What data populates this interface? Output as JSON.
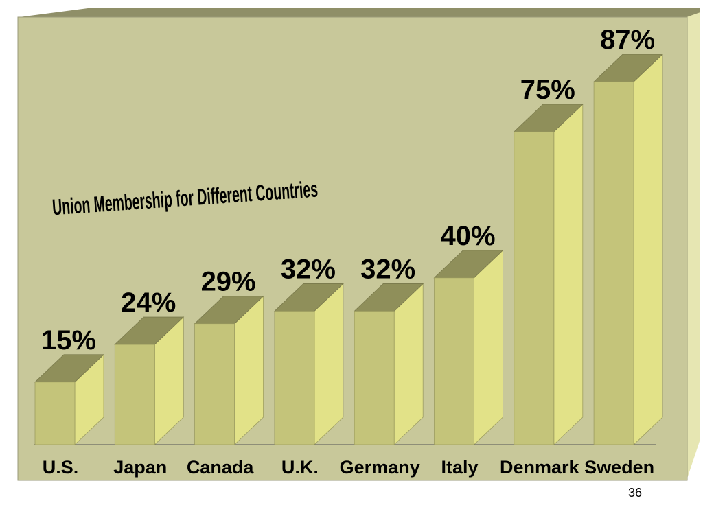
{
  "slide": {
    "page_number": "36"
  },
  "colors": {
    "panel_front": "#c8c89a",
    "panel_top": "#8f8f68",
    "panel_side": "#e6e6b2",
    "bar_front": "#c4c47a",
    "bar_top": "#8f8f5a",
    "bar_side": "#e2e288"
  },
  "chart_data": {
    "type": "bar",
    "title": "Union Membership for Different Countries",
    "categories": [
      "U.S.",
      "Japan",
      "Canada",
      "U.K.",
      "Germany",
      "Italy",
      "Denmark",
      "Sweden"
    ],
    "values": [
      15,
      24,
      29,
      32,
      32,
      40,
      75,
      87
    ],
    "value_labels": [
      "15%",
      "24%",
      "29%",
      "32%",
      "32%",
      "40%",
      "75%",
      "87%"
    ],
    "xlabel": "",
    "ylabel": "",
    "ylim": [
      0,
      100
    ],
    "grid": false,
    "legend": "none"
  }
}
